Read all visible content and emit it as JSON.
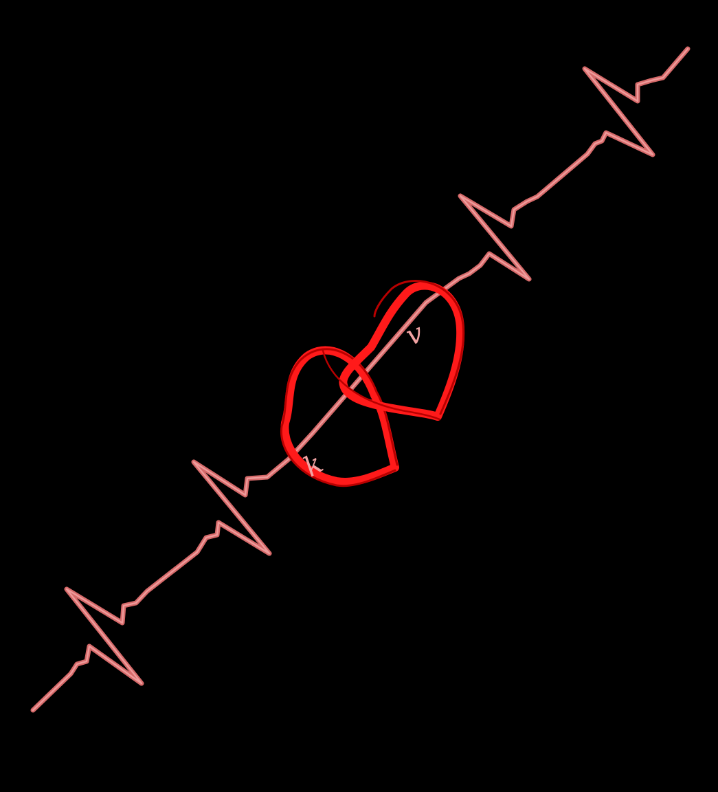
{
  "image": {
    "background_color": "#000000",
    "pulse_color": "#d66a6a",
    "pulse_highlight_color": "#f2a3a3",
    "heart_color": "#ff1a1a",
    "heart_dark_color": "#b80000",
    "initials": {
      "left": "k",
      "right": "v"
    }
  }
}
